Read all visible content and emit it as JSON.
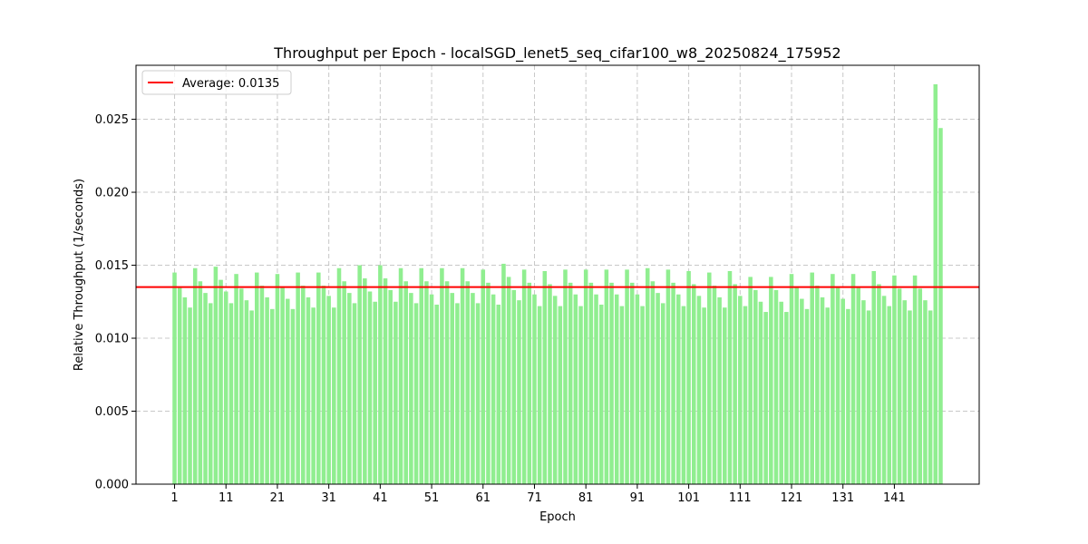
{
  "chart_data": {
    "type": "bar",
    "title": "Throughput per Epoch - localSGD_lenet5_seq_cifar100_w8_20250824_175952",
    "xlabel": "Epoch",
    "ylabel": "Relative Throughput (1/seconds)",
    "ylim": [
      0,
      0.0287
    ],
    "y_ticks": [
      "0.000",
      "0.005",
      "0.010",
      "0.015",
      "0.020",
      "0.025"
    ],
    "x_ticks": [
      "1",
      "11",
      "21",
      "31",
      "41",
      "51",
      "61",
      "71",
      "81",
      "91",
      "101",
      "111",
      "121",
      "131",
      "141"
    ],
    "grid": true,
    "bar_color": "#90ee90",
    "average_line": {
      "value": 0.0135,
      "label": "Average: 0.0135",
      "color": "#ff0000"
    },
    "legend_position": "top-left",
    "x": [
      1,
      2,
      3,
      4,
      5,
      6,
      7,
      8,
      9,
      10,
      11,
      12,
      13,
      14,
      15,
      16,
      17,
      18,
      19,
      20,
      21,
      22,
      23,
      24,
      25,
      26,
      27,
      28,
      29,
      30,
      31,
      32,
      33,
      34,
      35,
      36,
      37,
      38,
      39,
      40,
      41,
      42,
      43,
      44,
      45,
      46,
      47,
      48,
      49,
      50,
      51,
      52,
      53,
      54,
      55,
      56,
      57,
      58,
      59,
      60,
      61,
      62,
      63,
      64,
      65,
      66,
      67,
      68,
      69,
      70,
      71,
      72,
      73,
      74,
      75,
      76,
      77,
      78,
      79,
      80,
      81,
      82,
      83,
      84,
      85,
      86,
      87,
      88,
      89,
      90,
      91,
      92,
      93,
      94,
      95,
      96,
      97,
      98,
      99,
      100,
      101,
      102,
      103,
      104,
      105,
      106,
      107,
      108,
      109,
      110,
      111,
      112,
      113,
      114,
      115,
      116,
      117,
      118,
      119,
      120,
      121,
      122,
      123,
      124,
      125,
      126,
      127,
      128,
      129,
      130,
      131,
      132,
      133,
      134,
      135,
      136,
      137,
      138,
      139,
      140,
      141,
      142,
      143,
      144,
      145,
      146,
      147,
      148,
      149,
      150
    ],
    "values": [
      0.0145,
      0.0135,
      0.0128,
      0.0121,
      0.0148,
      0.0139,
      0.0131,
      0.0124,
      0.0149,
      0.014,
      0.0132,
      0.0124,
      0.0144,
      0.0134,
      0.0126,
      0.0119,
      0.0145,
      0.0136,
      0.0128,
      0.012,
      0.0144,
      0.0135,
      0.0127,
      0.012,
      0.0145,
      0.0136,
      0.0128,
      0.0121,
      0.0145,
      0.0136,
      0.0129,
      0.0121,
      0.0148,
      0.0139,
      0.0131,
      0.0124,
      0.015,
      0.0141,
      0.0132,
      0.0125,
      0.015,
      0.0141,
      0.0133,
      0.0125,
      0.0148,
      0.0139,
      0.0131,
      0.0124,
      0.0148,
      0.0139,
      0.013,
      0.0123,
      0.0148,
      0.0139,
      0.0131,
      0.0124,
      0.0148,
      0.0139,
      0.0131,
      0.0124,
      0.0147,
      0.0138,
      0.013,
      0.0123,
      0.0151,
      0.0142,
      0.0133,
      0.0126,
      0.0147,
      0.0138,
      0.013,
      0.0122,
      0.0146,
      0.0137,
      0.0129,
      0.0122,
      0.0147,
      0.0138,
      0.013,
      0.0122,
      0.0147,
      0.0138,
      0.013,
      0.0123,
      0.0147,
      0.0138,
      0.013,
      0.0122,
      0.0147,
      0.0138,
      0.013,
      0.0122,
      0.0148,
      0.0139,
      0.0131,
      0.0124,
      0.0147,
      0.0138,
      0.013,
      0.0122,
      0.0146,
      0.0137,
      0.0129,
      0.0121,
      0.0145,
      0.0136,
      0.0128,
      0.0121,
      0.0146,
      0.0137,
      0.0129,
      0.0122,
      0.0142,
      0.0133,
      0.0125,
      0.0118,
      0.0142,
      0.0133,
      0.0125,
      0.0118,
      0.0144,
      0.0135,
      0.0127,
      0.012,
      0.0145,
      0.0136,
      0.0128,
      0.0121,
      0.0144,
      0.0135,
      0.0127,
      0.012,
      0.0144,
      0.0135,
      0.0126,
      0.0119,
      0.0146,
      0.0137,
      0.0129,
      0.0122,
      0.0143,
      0.0134,
      0.0126,
      0.0119,
      0.0143,
      0.0134,
      0.0126,
      0.0119,
      0.0274,
      0.0244
    ]
  }
}
